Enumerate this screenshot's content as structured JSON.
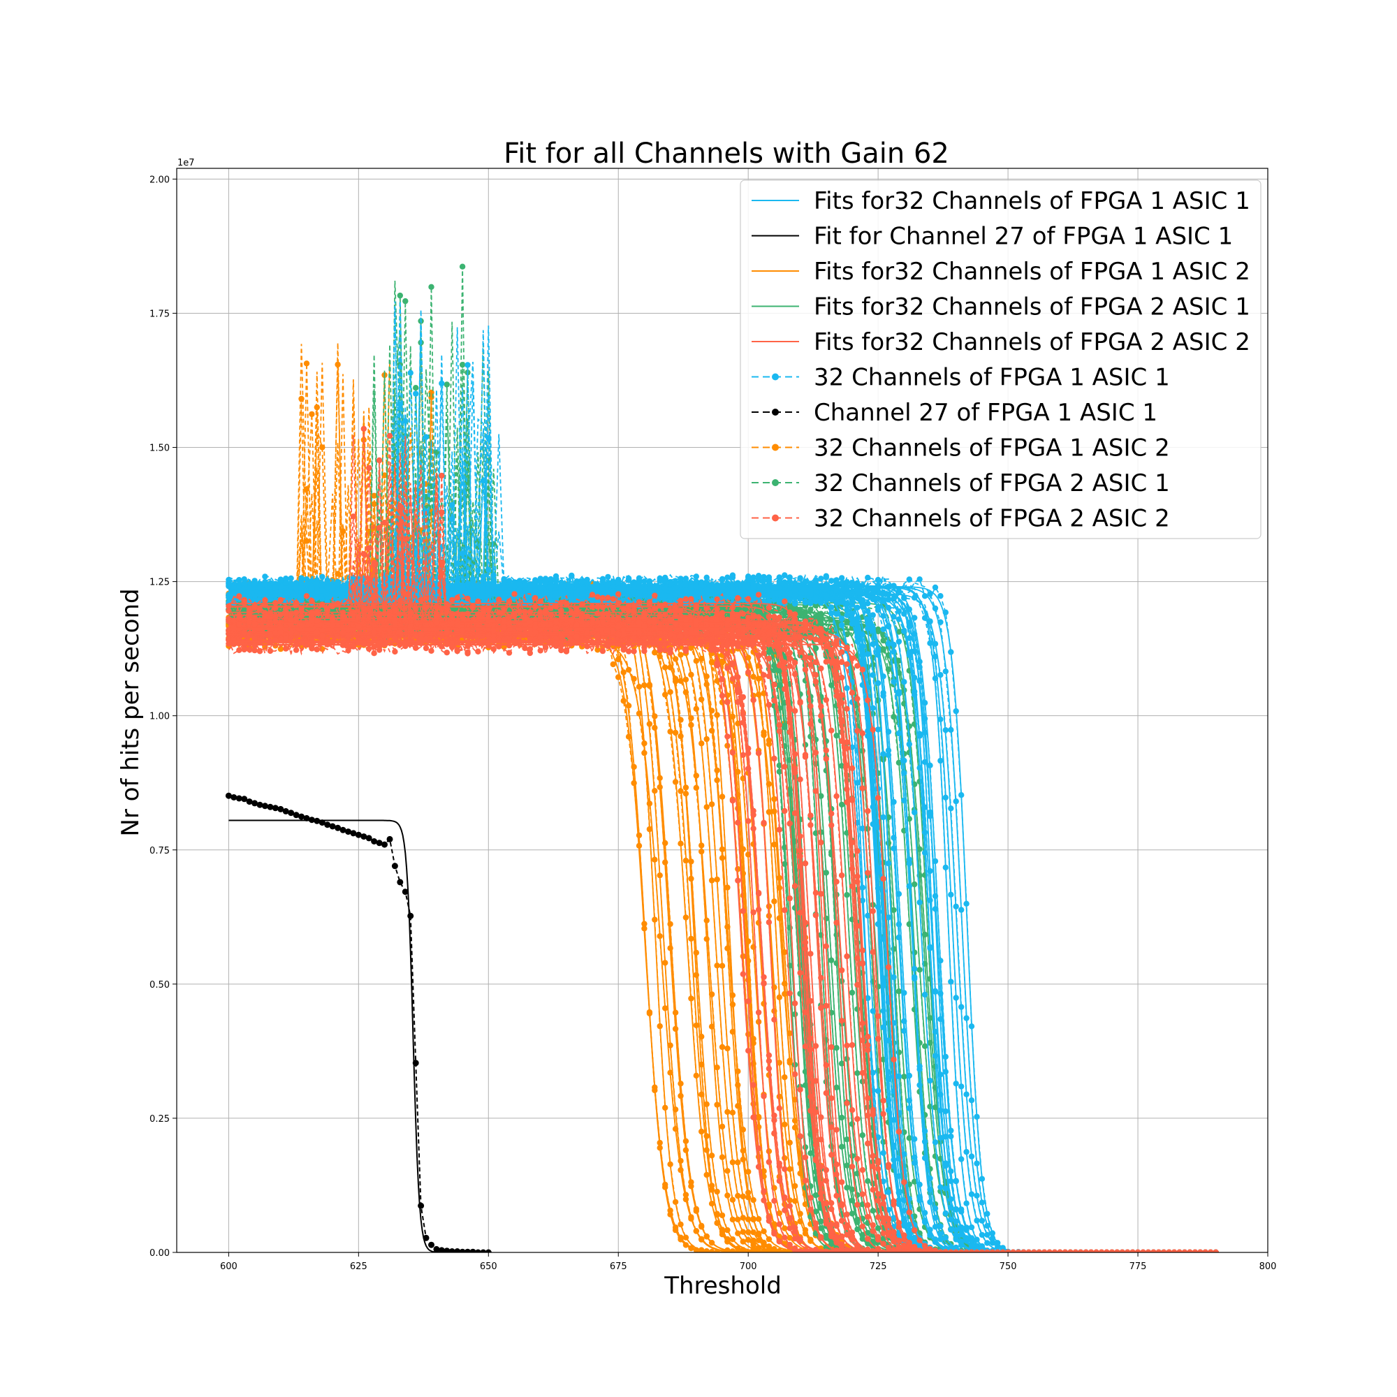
{
  "chart_data": {
    "type": "line",
    "title": "Fit for all Channels with Gain 62",
    "xlabel": "Threshold",
    "ylabel": "Nr of hits per second",
    "y_offset_label": "1e7",
    "xlim": [
      590,
      800
    ],
    "ylim": [
      0,
      2.02
    ],
    "y_unit_multiplier": 10000000,
    "x_ticks": [
      600,
      625,
      650,
      675,
      700,
      725,
      750,
      775,
      800
    ],
    "x_tick_labels": [
      "600",
      "625",
      "650",
      "675",
      "700",
      "725",
      "750",
      "775",
      "800"
    ],
    "y_ticks": [
      0,
      0.25,
      0.5,
      0.75,
      1.0,
      1.25,
      1.5,
      1.75,
      2.0
    ],
    "y_tick_labels": [
      "0.00",
      "0.25",
      "0.50",
      "0.75",
      "1.00",
      "1.25",
      "1.50",
      "1.75",
      "2.00"
    ],
    "grid": true,
    "legend_position": "top-right",
    "legend": [
      {
        "label": "Fits for32 Channels of FPGA 1 ASIC 1",
        "color": "#1ab8f0",
        "style": "solid"
      },
      {
        "label": "Fit for Channel 27 of FPGA 1 ASIC 1",
        "color": "#000000",
        "style": "solid"
      },
      {
        "label": "Fits for32 Channels of FPGA 1 ASIC 2",
        "color": "#ff8c00",
        "style": "solid"
      },
      {
        "label": "Fits for32 Channels of FPGA 2 ASIC 1",
        "color": "#3cb371",
        "style": "solid"
      },
      {
        "label": "Fits for32 Channels of FPGA 2 ASIC 2",
        "color": "#ff6347",
        "style": "solid"
      },
      {
        "label": "32 Channels of FPGA 1 ASIC 1",
        "color": "#1ab8f0",
        "style": "dashed-marker"
      },
      {
        "label": "Channel 27 of FPGA 1 ASIC 1",
        "color": "#000000",
        "style": "dashed-marker"
      },
      {
        "label": "32 Channels of FPGA 1 ASIC 2",
        "color": "#ff8c00",
        "style": "dashed-marker"
      },
      {
        "label": "32 Channels of FPGA 2 ASIC 1",
        "color": "#3cb371",
        "style": "dashed-marker"
      },
      {
        "label": "32 Channels of FPGA 2 ASIC 2",
        "color": "#ff6347",
        "style": "dashed-marker"
      }
    ],
    "groups": [
      {
        "name": "FPGA 1 ASIC 1",
        "color": "#1ab8f0",
        "plateau_range": [
          1.22,
          1.245
        ],
        "edge_range": [
          722,
          743
        ],
        "width": 1.6,
        "spike_x_range": [
          632,
          652
        ],
        "spike_max": 1.84
      },
      {
        "name": "FPGA 1 ASIC 2",
        "color": "#ff8c00",
        "plateau_range": [
          1.14,
          1.235
        ],
        "edge_range": [
          680,
          712
        ],
        "width": 1.8,
        "spike_x_range": [
          614,
          640
        ],
        "spike_max": 1.76
      },
      {
        "name": "FPGA 2 ASIC 1",
        "color": "#3cb371",
        "plateau_range": [
          1.16,
          1.22
        ],
        "edge_range": [
          705,
          737
        ],
        "width": 1.7,
        "spike_x_range": [
          628,
          651
        ],
        "spike_max": 1.92
      },
      {
        "name": "FPGA 2 ASIC 2",
        "color": "#ff6347",
        "plateau_range": [
          1.13,
          1.21
        ],
        "edge_range": [
          698,
          728
        ],
        "width": 1.7,
        "spike_x_range": [
          624,
          641
        ],
        "spike_max": 1.6
      }
    ],
    "channel_27": {
      "color": "#000000",
      "fit": {
        "plateau": 0.805,
        "edge": 635.5,
        "width": 0.6,
        "x_range": [
          600,
          650
        ]
      },
      "points": [
        [
          600,
          0.851
        ],
        [
          601,
          0.848
        ],
        [
          602,
          0.846
        ],
        [
          603,
          0.845
        ],
        [
          604,
          0.84
        ],
        [
          605,
          0.837
        ],
        [
          606,
          0.834
        ],
        [
          607,
          0.832
        ],
        [
          608,
          0.83
        ],
        [
          609,
          0.828
        ],
        [
          610,
          0.826
        ],
        [
          611,
          0.822
        ],
        [
          612,
          0.819
        ],
        [
          613,
          0.815
        ],
        [
          614,
          0.812
        ],
        [
          615,
          0.809
        ],
        [
          616,
          0.806
        ],
        [
          617,
          0.804
        ],
        [
          618,
          0.801
        ],
        [
          619,
          0.797
        ],
        [
          620,
          0.794
        ],
        [
          621,
          0.791
        ],
        [
          622,
          0.787
        ],
        [
          623,
          0.784
        ],
        [
          624,
          0.781
        ],
        [
          625,
          0.778
        ],
        [
          626,
          0.775
        ],
        [
          627,
          0.772
        ],
        [
          628,
          0.766
        ],
        [
          629,
          0.763
        ],
        [
          630,
          0.76
        ],
        [
          631,
          0.77
        ],
        [
          632,
          0.72
        ],
        [
          633,
          0.69
        ],
        [
          634,
          0.672
        ],
        [
          635,
          0.627
        ],
        [
          636,
          0.353
        ],
        [
          637,
          0.087
        ],
        [
          638,
          0.027
        ],
        [
          639,
          0.014
        ],
        [
          640,
          0.006
        ],
        [
          641,
          0.004
        ],
        [
          642,
          0.003
        ],
        [
          643,
          0.002
        ],
        [
          644,
          0.002
        ],
        [
          645,
          0.001
        ],
        [
          646,
          0.001
        ],
        [
          647,
          0.001
        ],
        [
          648,
          0.0
        ],
        [
          649,
          0.0
        ],
        [
          650,
          0.0
        ]
      ]
    }
  }
}
